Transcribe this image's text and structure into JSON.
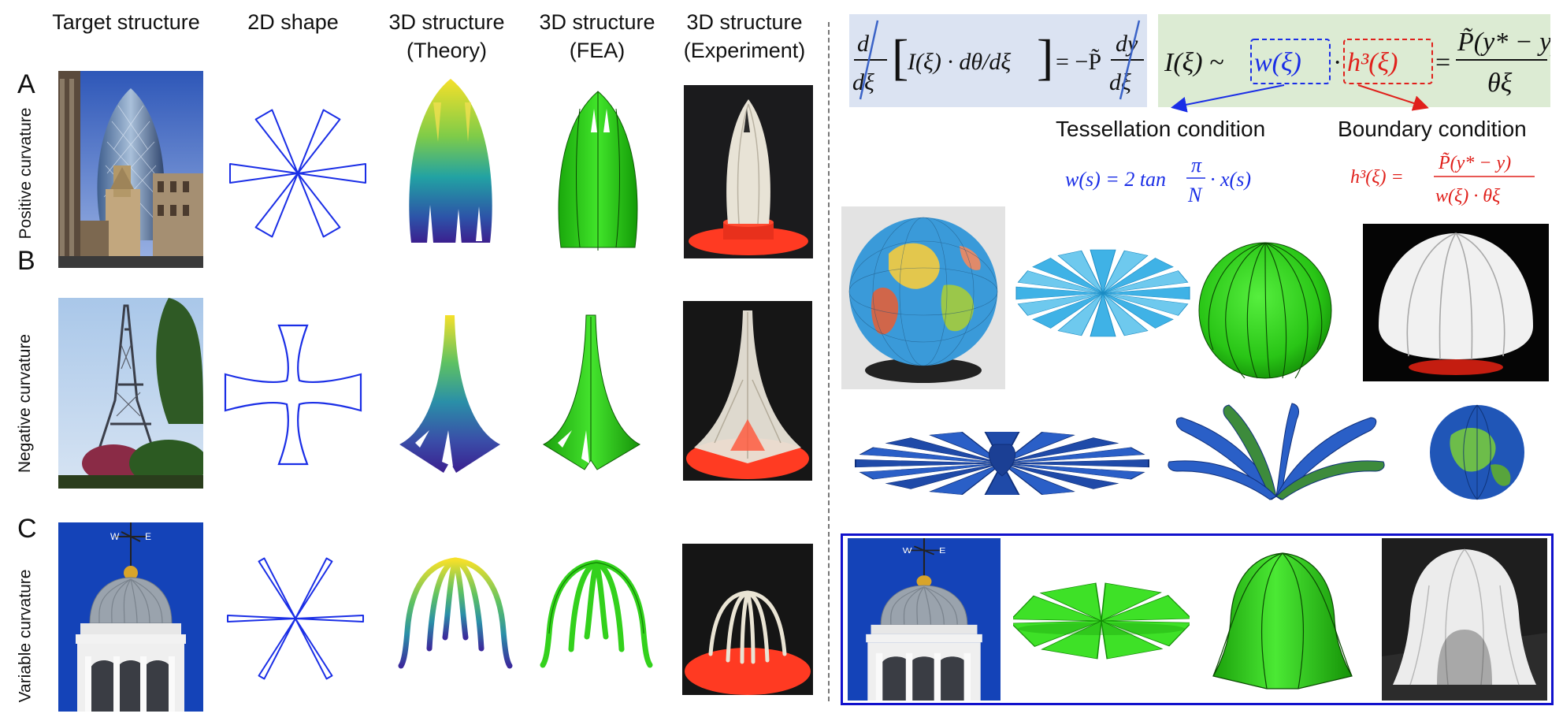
{
  "column_headers": [
    {
      "line1": "Target structure",
      "line2": ""
    },
    {
      "line1": "2D shape",
      "line2": ""
    },
    {
      "line1": "3D structure",
      "line2": "(Theory)"
    },
    {
      "line1": "3D structure",
      "line2": "(FEA)"
    },
    {
      "line1": "3D structure",
      "line2": "(Experiment)"
    }
  ],
  "rows": [
    {
      "letter": "A",
      "side_label": "Positive curvature"
    },
    {
      "letter": "B",
      "side_label": "Negative curvature"
    },
    {
      "letter": "C",
      "side_label": "Variable curvature"
    }
  ],
  "equations": {
    "eq1": {
      "lhs_num": "d",
      "lhs_den": "dξ",
      "bracket_inner": "I(ξ) · dθ/dξ",
      "equals": "= −P̃",
      "rhs_num": "dy",
      "rhs_den": "dξ"
    },
    "eq2": {
      "lhs": "I(ξ) ~",
      "w_term": "w(ξ)",
      "dot": "·",
      "h_term": "h³(ξ)",
      "equals": "=",
      "rhs_num": "P̃(y* − y)",
      "rhs_den": "θξ"
    }
  },
  "conditions": {
    "tessellation_label": "Tessellation condition",
    "tessellation_eq_lhs": "w(s) = 2 tan",
    "tessellation_eq_frac_num": "π",
    "tessellation_eq_frac_den": "N",
    "tessellation_eq_rhs": "· x(s)",
    "boundary_label": "Boundary condition",
    "boundary_eq_lhs": "h³(ξ) =",
    "boundary_eq_num": "P̃(y* − y)",
    "boundary_eq_den": "w(ξ) · θξ"
  },
  "colors": {
    "eq1_bg": "#dbe3f2",
    "eq2_bg": "#dcebd3",
    "blue": "#1a2ee6",
    "red": "#e0201b",
    "fea_green": "#27d415",
    "frame_blue": "#1111cc"
  }
}
